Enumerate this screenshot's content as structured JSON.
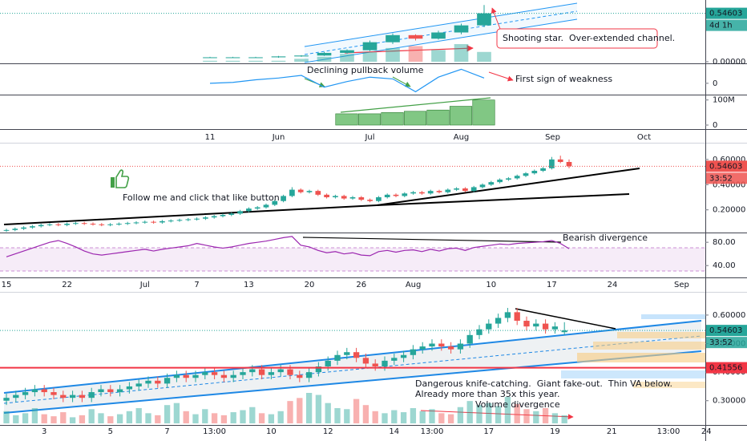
{
  "chart_data": [
    {
      "type": "candlestick",
      "up_color": "#26a69a",
      "down_color": "#ef5350",
      "categories": [
        "11",
        null,
        null,
        "Jun",
        null,
        null,
        null,
        "Jul",
        null,
        null,
        null,
        "Aug",
        null,
        null,
        null,
        "Sep",
        null,
        null,
        null,
        "Oct"
      ],
      "open": [
        0.05,
        0.05,
        0.05,
        0.05,
        0.06,
        0.07,
        0.1,
        0.13,
        0.22,
        0.3,
        0.26,
        0.33,
        0.41,
        null,
        null,
        null,
        null,
        null,
        null,
        null
      ],
      "high": [
        0.055,
        0.055,
        0.055,
        0.065,
        0.075,
        0.11,
        0.14,
        0.24,
        0.32,
        0.31,
        0.35,
        0.43,
        0.64,
        null,
        null,
        null,
        null,
        null,
        null,
        null
      ],
      "low": [
        0.045,
        0.045,
        0.045,
        0.045,
        0.055,
        0.065,
        0.09,
        0.12,
        0.2,
        0.24,
        0.25,
        0.31,
        0.39,
        null,
        null,
        null,
        null,
        null,
        null,
        null
      ],
      "close": [
        0.05,
        0.05,
        0.05,
        0.06,
        0.07,
        0.1,
        0.13,
        0.22,
        0.3,
        0.26,
        0.33,
        0.41,
        0.546,
        null,
        null,
        null,
        null,
        null,
        null,
        null
      ],
      "volume": [
        1,
        1,
        1,
        1,
        3,
        5,
        8,
        10,
        14,
        16,
        12,
        18,
        10,
        null,
        null,
        null,
        null,
        null,
        null,
        null
      ],
      "ylim": [
        0,
        0.66
      ],
      "yticks": [
        {
          "value": 0,
          "label": "0.00000"
        }
      ],
      "last_price": 0.54603,
      "countdown": "4d 1h",
      "annotations": [
        "Shooting star.  Over-extended channel.",
        "Declining pullback volume",
        "First sign of weakness"
      ],
      "indicator": {
        "color": "#2196f3",
        "values": [
          0,
          0.05,
          0.2,
          0.3,
          0.45,
          -0.22,
          0.1,
          0.35,
          0.25,
          -0.48,
          0.35,
          0.8,
          0.3,
          null,
          null,
          null,
          null,
          null,
          null,
          null
        ],
        "ylim": [
          -0.6,
          1
        ],
        "yticks": [
          0
        ]
      },
      "volume_pane": {
        "color": "#4caf50",
        "values": [
          null,
          null,
          null,
          null,
          null,
          null,
          45000000,
          45000000,
          50000000,
          55000000,
          60000000,
          75000000,
          100000000,
          null,
          null,
          null,
          null,
          null,
          null,
          null
        ],
        "ylim": [
          0,
          115000000
        ],
        "yticks": [
          0,
          {
            "value": 100000000,
            "label": "100M"
          }
        ]
      }
    },
    {
      "type": "candlestick",
      "up_color": "#26a69a",
      "down_color": "#ef5350",
      "categories": [
        "15",
        null,
        null,
        null,
        null,
        null,
        null,
        "22",
        null,
        null,
        null,
        null,
        null,
        null,
        null,
        null,
        "Jul",
        null,
        null,
        null,
        null,
        null,
        "7",
        null,
        null,
        null,
        null,
        null,
        "13",
        null,
        null,
        null,
        null,
        null,
        null,
        "20",
        null,
        null,
        null,
        null,
        null,
        "26",
        null,
        null,
        null,
        null,
        null,
        "Aug",
        null,
        null,
        null,
        null,
        null,
        null,
        null,
        null,
        "10",
        null,
        null,
        null,
        null,
        null,
        null,
        "17",
        null,
        null,
        null,
        null,
        null,
        null,
        "24",
        null,
        null,
        null,
        null,
        null,
        null,
        null,
        "Sep"
      ],
      "open": [
        0.035,
        0.04,
        0.05,
        0.06,
        0.07,
        0.08,
        0.085,
        0.08,
        0.09,
        0.095,
        0.09,
        0.085,
        0.08,
        0.085,
        0.09,
        0.095,
        0.1,
        0.105,
        0.1,
        0.11,
        0.115,
        0.12,
        0.125,
        0.13,
        0.14,
        0.15,
        0.16,
        0.17,
        0.19,
        0.21,
        0.22,
        0.24,
        0.27,
        0.31,
        0.36,
        0.34,
        0.35,
        0.32,
        0.3,
        0.31,
        0.29,
        0.3,
        0.28,
        0.27,
        0.3,
        0.32,
        0.31,
        0.33,
        0.34,
        0.33,
        0.35,
        0.34,
        0.36,
        0.37,
        0.35,
        0.38,
        0.4,
        0.42,
        0.44,
        0.45,
        0.47,
        0.49,
        0.51,
        0.53,
        0.6,
        0.58,
        null,
        null,
        null,
        null,
        null,
        null,
        null,
        null,
        null,
        null,
        null,
        null,
        null
      ],
      "high": [
        0.05,
        0.06,
        0.07,
        0.08,
        0.09,
        0.095,
        0.095,
        0.1,
        0.105,
        0.105,
        0.1,
        0.095,
        0.095,
        0.1,
        0.105,
        0.11,
        0.115,
        0.115,
        0.12,
        0.125,
        0.13,
        0.135,
        0.14,
        0.15,
        0.16,
        0.17,
        0.18,
        0.2,
        0.22,
        0.23,
        0.25,
        0.28,
        0.32,
        0.38,
        0.37,
        0.36,
        0.36,
        0.33,
        0.32,
        0.32,
        0.31,
        0.31,
        0.29,
        0.31,
        0.33,
        0.33,
        0.34,
        0.35,
        0.35,
        0.36,
        0.36,
        0.37,
        0.38,
        0.38,
        0.39,
        0.41,
        0.43,
        0.45,
        0.46,
        0.48,
        0.5,
        0.52,
        0.54,
        0.62,
        0.63,
        0.6,
        null,
        null,
        null,
        null,
        null,
        null,
        null,
        null,
        null,
        null,
        null,
        null,
        null
      ],
      "low": [
        0.025,
        0.03,
        0.04,
        0.05,
        0.06,
        0.07,
        0.07,
        0.07,
        0.08,
        0.08,
        0.075,
        0.07,
        0.07,
        0.075,
        0.08,
        0.085,
        0.09,
        0.09,
        0.09,
        0.1,
        0.105,
        0.11,
        0.115,
        0.12,
        0.13,
        0.14,
        0.15,
        0.16,
        0.18,
        0.2,
        0.21,
        0.23,
        0.26,
        0.3,
        0.33,
        0.33,
        0.31,
        0.29,
        0.29,
        0.28,
        0.28,
        0.27,
        0.26,
        0.26,
        0.29,
        0.3,
        0.3,
        0.32,
        0.32,
        0.32,
        0.33,
        0.33,
        0.35,
        0.34,
        0.34,
        0.37,
        0.39,
        0.41,
        0.43,
        0.44,
        0.46,
        0.48,
        0.5,
        0.52,
        0.57,
        0.53,
        null,
        null,
        null,
        null,
        null,
        null,
        null,
        null,
        null,
        null,
        null,
        null,
        null
      ],
      "close": [
        0.04,
        0.05,
        0.06,
        0.07,
        0.08,
        0.085,
        0.08,
        0.09,
        0.095,
        0.09,
        0.085,
        0.08,
        0.085,
        0.09,
        0.095,
        0.1,
        0.105,
        0.1,
        0.11,
        0.115,
        0.12,
        0.125,
        0.13,
        0.14,
        0.15,
        0.16,
        0.17,
        0.19,
        0.21,
        0.22,
        0.24,
        0.27,
        0.31,
        0.36,
        0.34,
        0.35,
        0.32,
        0.3,
        0.31,
        0.29,
        0.3,
        0.28,
        0.27,
        0.3,
        0.32,
        0.31,
        0.33,
        0.34,
        0.33,
        0.35,
        0.34,
        0.36,
        0.37,
        0.35,
        0.38,
        0.4,
        0.42,
        0.44,
        0.45,
        0.47,
        0.49,
        0.51,
        0.53,
        0.6,
        0.58,
        0.546,
        null,
        null,
        null,
        null,
        null,
        null,
        null,
        null,
        null,
        null,
        null,
        null,
        null
      ],
      "ylim": [
        0.02,
        0.72
      ],
      "yticks": [
        {
          "value": 0.6,
          "label": "0.60000"
        },
        {
          "value": 0.4,
          "label": "0.40000"
        },
        {
          "value": 0.2,
          "label": "0.20000"
        }
      ],
      "last_price": 0.54603,
      "countdown": "33:52",
      "annotations": [
        "Follow me and click that like button",
        "Bearish divergence"
      ],
      "rsi": {
        "color": "#9c27b0",
        "values": [
          55,
          60,
          65,
          70,
          75,
          80,
          83,
          78,
          72,
          65,
          60,
          58,
          60,
          62,
          64,
          66,
          68,
          65,
          68,
          70,
          72,
          74,
          78,
          75,
          72,
          70,
          72,
          75,
          78,
          80,
          82,
          85,
          88,
          90,
          75,
          72,
          66,
          62,
          64,
          60,
          62,
          58,
          57,
          64,
          66,
          63,
          66,
          67,
          64,
          68,
          65,
          69,
          70,
          66,
          71,
          73,
          75,
          77,
          76,
          78,
          79,
          80,
          81,
          83,
          78,
          69,
          null,
          null,
          null,
          null,
          null,
          null,
          null,
          null,
          null,
          null,
          null,
          null,
          null
        ],
        "ylim": [
          21,
          94
        ],
        "yticks": [
          {
            "value": 80,
            "label": "80.00"
          },
          {
            "value": 40,
            "label": "40.00"
          }
        ]
      }
    },
    {
      "type": "candlestick",
      "up_color": "#26a69a",
      "down_color": "#ef5350",
      "categories": [
        null,
        null,
        null,
        null,
        "3",
        null,
        null,
        null,
        null,
        null,
        null,
        "5",
        null,
        null,
        null,
        null,
        null,
        "7",
        null,
        null,
        null,
        null,
        "13:00",
        null,
        null,
        null,
        null,
        null,
        "10",
        null,
        null,
        null,
        null,
        null,
        "12",
        null,
        null,
        null,
        null,
        null,
        null,
        "14",
        null,
        null,
        null,
        "13:00",
        null,
        null,
        null,
        null,
        null,
        "17",
        null,
        null,
        null,
        null,
        null,
        null,
        "19",
        null,
        null,
        null,
        null,
        null,
        "21",
        null,
        null,
        null,
        null,
        null,
        "13:00",
        null,
        null,
        null,
        "24"
      ],
      "open": [
        0.3,
        0.31,
        0.32,
        0.33,
        0.34,
        0.33,
        0.32,
        0.31,
        0.32,
        0.31,
        0.33,
        0.34,
        0.33,
        0.34,
        0.35,
        0.36,
        0.37,
        0.36,
        0.38,
        0.39,
        0.38,
        0.39,
        0.4,
        0.39,
        0.38,
        0.39,
        0.4,
        0.41,
        0.39,
        0.4,
        0.41,
        0.39,
        0.38,
        0.4,
        0.42,
        0.44,
        0.46,
        0.47,
        0.45,
        0.43,
        0.42,
        0.44,
        0.45,
        0.46,
        0.48,
        0.49,
        0.5,
        0.49,
        0.48,
        0.5,
        0.53,
        0.55,
        0.57,
        0.59,
        0.61,
        0.58,
        0.56,
        0.57,
        0.55,
        0.54,
        null,
        null,
        null,
        null,
        null,
        null,
        null,
        null,
        null,
        null,
        null,
        null,
        null,
        null,
        null
      ],
      "high": [
        0.325,
        0.335,
        0.345,
        0.355,
        0.355,
        0.345,
        0.335,
        0.335,
        0.335,
        0.345,
        0.355,
        0.355,
        0.355,
        0.365,
        0.375,
        0.385,
        0.385,
        0.395,
        0.405,
        0.405,
        0.405,
        0.415,
        0.415,
        0.405,
        0.405,
        0.415,
        0.425,
        0.425,
        0.415,
        0.425,
        0.425,
        0.405,
        0.415,
        0.435,
        0.455,
        0.475,
        0.485,
        0.485,
        0.465,
        0.445,
        0.455,
        0.465,
        0.475,
        0.495,
        0.505,
        0.515,
        0.515,
        0.505,
        0.515,
        0.545,
        0.565,
        0.585,
        0.605,
        0.625,
        0.625,
        0.595,
        0.585,
        0.585,
        0.575,
        0.575,
        null,
        null,
        null,
        null,
        null,
        null,
        null,
        null,
        null,
        null,
        null,
        null,
        null,
        null,
        null
      ],
      "low": [
        0.285,
        0.295,
        0.305,
        0.315,
        0.315,
        0.305,
        0.295,
        0.295,
        0.295,
        0.295,
        0.315,
        0.315,
        0.315,
        0.325,
        0.335,
        0.345,
        0.345,
        0.345,
        0.365,
        0.365,
        0.365,
        0.375,
        0.375,
        0.365,
        0.365,
        0.375,
        0.385,
        0.375,
        0.375,
        0.385,
        0.375,
        0.365,
        0.365,
        0.385,
        0.405,
        0.425,
        0.445,
        0.435,
        0.415,
        0.405,
        0.405,
        0.425,
        0.435,
        0.445,
        0.465,
        0.475,
        0.475,
        0.465,
        0.465,
        0.485,
        0.515,
        0.535,
        0.555,
        0.575,
        0.565,
        0.545,
        0.545,
        0.535,
        0.535,
        0.53,
        null,
        null,
        null,
        null,
        null,
        null,
        null,
        null,
        null,
        null,
        null,
        null,
        null,
        null,
        null
      ],
      "close": [
        0.31,
        0.32,
        0.33,
        0.34,
        0.33,
        0.32,
        0.31,
        0.32,
        0.31,
        0.33,
        0.34,
        0.33,
        0.34,
        0.35,
        0.36,
        0.37,
        0.36,
        0.38,
        0.39,
        0.38,
        0.39,
        0.4,
        0.39,
        0.38,
        0.39,
        0.4,
        0.41,
        0.39,
        0.4,
        0.41,
        0.39,
        0.38,
        0.4,
        0.42,
        0.44,
        0.46,
        0.47,
        0.45,
        0.43,
        0.42,
        0.44,
        0.45,
        0.46,
        0.48,
        0.49,
        0.5,
        0.49,
        0.48,
        0.5,
        0.53,
        0.55,
        0.57,
        0.59,
        0.61,
        0.58,
        0.56,
        0.57,
        0.55,
        0.56,
        0.546,
        null,
        null,
        null,
        null,
        null,
        null,
        null,
        null,
        null,
        null,
        null,
        null,
        null,
        null,
        null
      ],
      "volume": [
        12,
        8,
        10,
        15,
        9,
        7,
        11,
        6,
        8,
        14,
        10,
        7,
        9,
        12,
        15,
        10,
        8,
        18,
        20,
        12,
        9,
        14,
        10,
        8,
        11,
        13,
        16,
        10,
        9,
        12,
        22,
        25,
        30,
        28,
        20,
        15,
        14,
        24,
        18,
        12,
        10,
        13,
        11,
        15,
        12,
        14,
        10,
        9,
        16,
        22,
        18,
        20,
        17,
        26,
        19,
        14,
        12,
        15,
        10,
        8,
        null,
        null,
        null,
        null,
        null,
        null,
        null,
        null,
        null,
        null,
        null,
        null,
        null,
        null,
        null
      ],
      "ylim": [
        0.215,
        0.67
      ],
      "yticks": [
        {
          "value": 0.6,
          "label": "0.60000"
        },
        {
          "value": 0.5,
          "label": "0.50000"
        },
        {
          "value": 0.4,
          "label": "0.40000"
        },
        {
          "value": 0.3,
          "label": "0.30000"
        }
      ],
      "last_price": 0.54603,
      "countdown": "33:52",
      "level": 0.41556,
      "level_color": "#f23645",
      "annotations": [
        "Dangerous knife-catching.  Giant fake-out.  Thin VA below.",
        "Already more than 35x this year.",
        "Volume divergence"
      ]
    }
  ]
}
